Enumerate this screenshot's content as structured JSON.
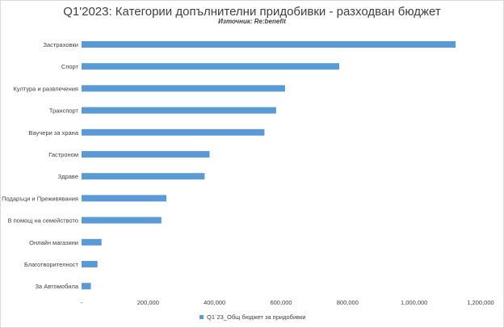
{
  "chart_data": {
    "type": "bar",
    "orientation": "horizontal",
    "title": "Q1'2023: Категории допълнителни придобивки - разходван бюджет",
    "subtitle": "Източник: Re:benefit",
    "categories": [
      "Застраховки",
      "Спорт",
      "Култура и развлечения",
      "Транспорт",
      "Ваучери за храна",
      "Гастроном",
      "Здраве",
      "Подаръци и Преживявания",
      "В помощ на семейството",
      "Онлайн магазини",
      "Благотворителност",
      "За Автомобила"
    ],
    "series": [
      {
        "name": "Q1`23_Общ бюджет за придобивки",
        "color": "#5b9bd5",
        "values": [
          1125000,
          775000,
          612000,
          585000,
          550000,
          385000,
          370000,
          255000,
          240000,
          60000,
          48000,
          28000
        ]
      }
    ],
    "xlim": [
      0,
      1200000
    ],
    "xticks": [
      0,
      200000,
      400000,
      600000,
      800000,
      1000000,
      1200000
    ],
    "xtick_labels": [
      "-",
      "200,000",
      "400,000",
      "600,000",
      "800,000",
      "1,000,000",
      "1,200,000"
    ],
    "grid": false,
    "legend_position": "bottom"
  }
}
